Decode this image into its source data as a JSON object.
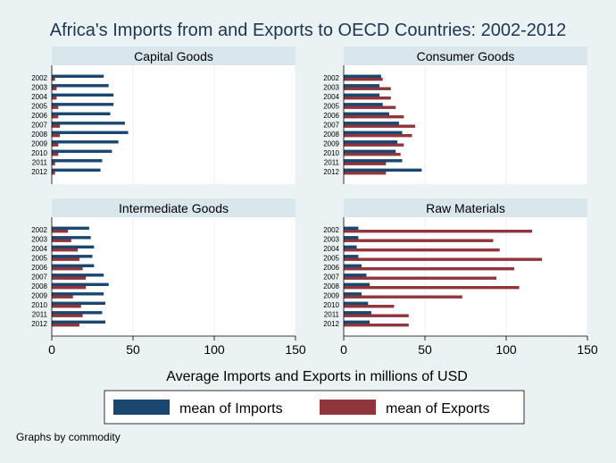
{
  "chart_data": {
    "type": "bar",
    "orientation": "horizontal",
    "title": "Africa's Imports from and Exports to OECD Countries: 2002-2012",
    "xlabel": "Average Imports and Exports in millions of USD",
    "note": "Graphs by commodity",
    "xlim": [
      0,
      150
    ],
    "xticks": [
      "0",
      "50",
      "100",
      "150"
    ],
    "grid": true,
    "legend_position": "bottom",
    "colors": {
      "imports": "#1a476f",
      "exports": "#90353b"
    },
    "categories": [
      "2002",
      "2003",
      "2004",
      "2005",
      "2006",
      "2007",
      "2008",
      "2009",
      "2010",
      "2011",
      "2012"
    ],
    "panels": [
      {
        "title": "Capital Goods",
        "series": [
          {
            "name": "mean of Imports",
            "values": [
              32,
              35,
              38,
              38,
              36,
              45,
              47,
              41,
              37,
              31,
              30
            ]
          },
          {
            "name": "mean of Exports",
            "values": [
              2,
              3,
              3,
              4,
              4,
              5,
              5,
              4,
              4,
              2,
              2
            ]
          }
        ]
      },
      {
        "title": "Consumer Goods",
        "series": [
          {
            "name": "mean of Imports",
            "values": [
              23,
              22,
              22,
              24,
              28,
              34,
              36,
              33,
              32,
              36,
              48
            ]
          },
          {
            "name": "mean of Exports",
            "values": [
              24,
              29,
              29,
              32,
              37,
              44,
              42,
              37,
              35,
              26,
              26
            ]
          }
        ]
      },
      {
        "title": "Intermediate Goods",
        "series": [
          {
            "name": "mean of Imports",
            "values": [
              23,
              24,
              26,
              25,
              26,
              32,
              35,
              32,
              33,
              31,
              33
            ]
          },
          {
            "name": "mean of Exports",
            "values": [
              10,
              12,
              16,
              17,
              19,
              21,
              21,
              13,
              18,
              19,
              17
            ]
          }
        ]
      },
      {
        "title": "Raw Materials",
        "series": [
          {
            "name": "mean of Imports",
            "values": [
              9,
              9,
              8,
              9,
              11,
              14,
              16,
              11,
              15,
              17,
              16
            ]
          },
          {
            "name": "mean of Exports",
            "values": [
              116,
              92,
              96,
              122,
              105,
              94,
              108,
              73,
              31,
              40,
              40
            ]
          }
        ]
      }
    ],
    "legend": [
      "mean of Imports",
      "mean of Exports"
    ]
  }
}
